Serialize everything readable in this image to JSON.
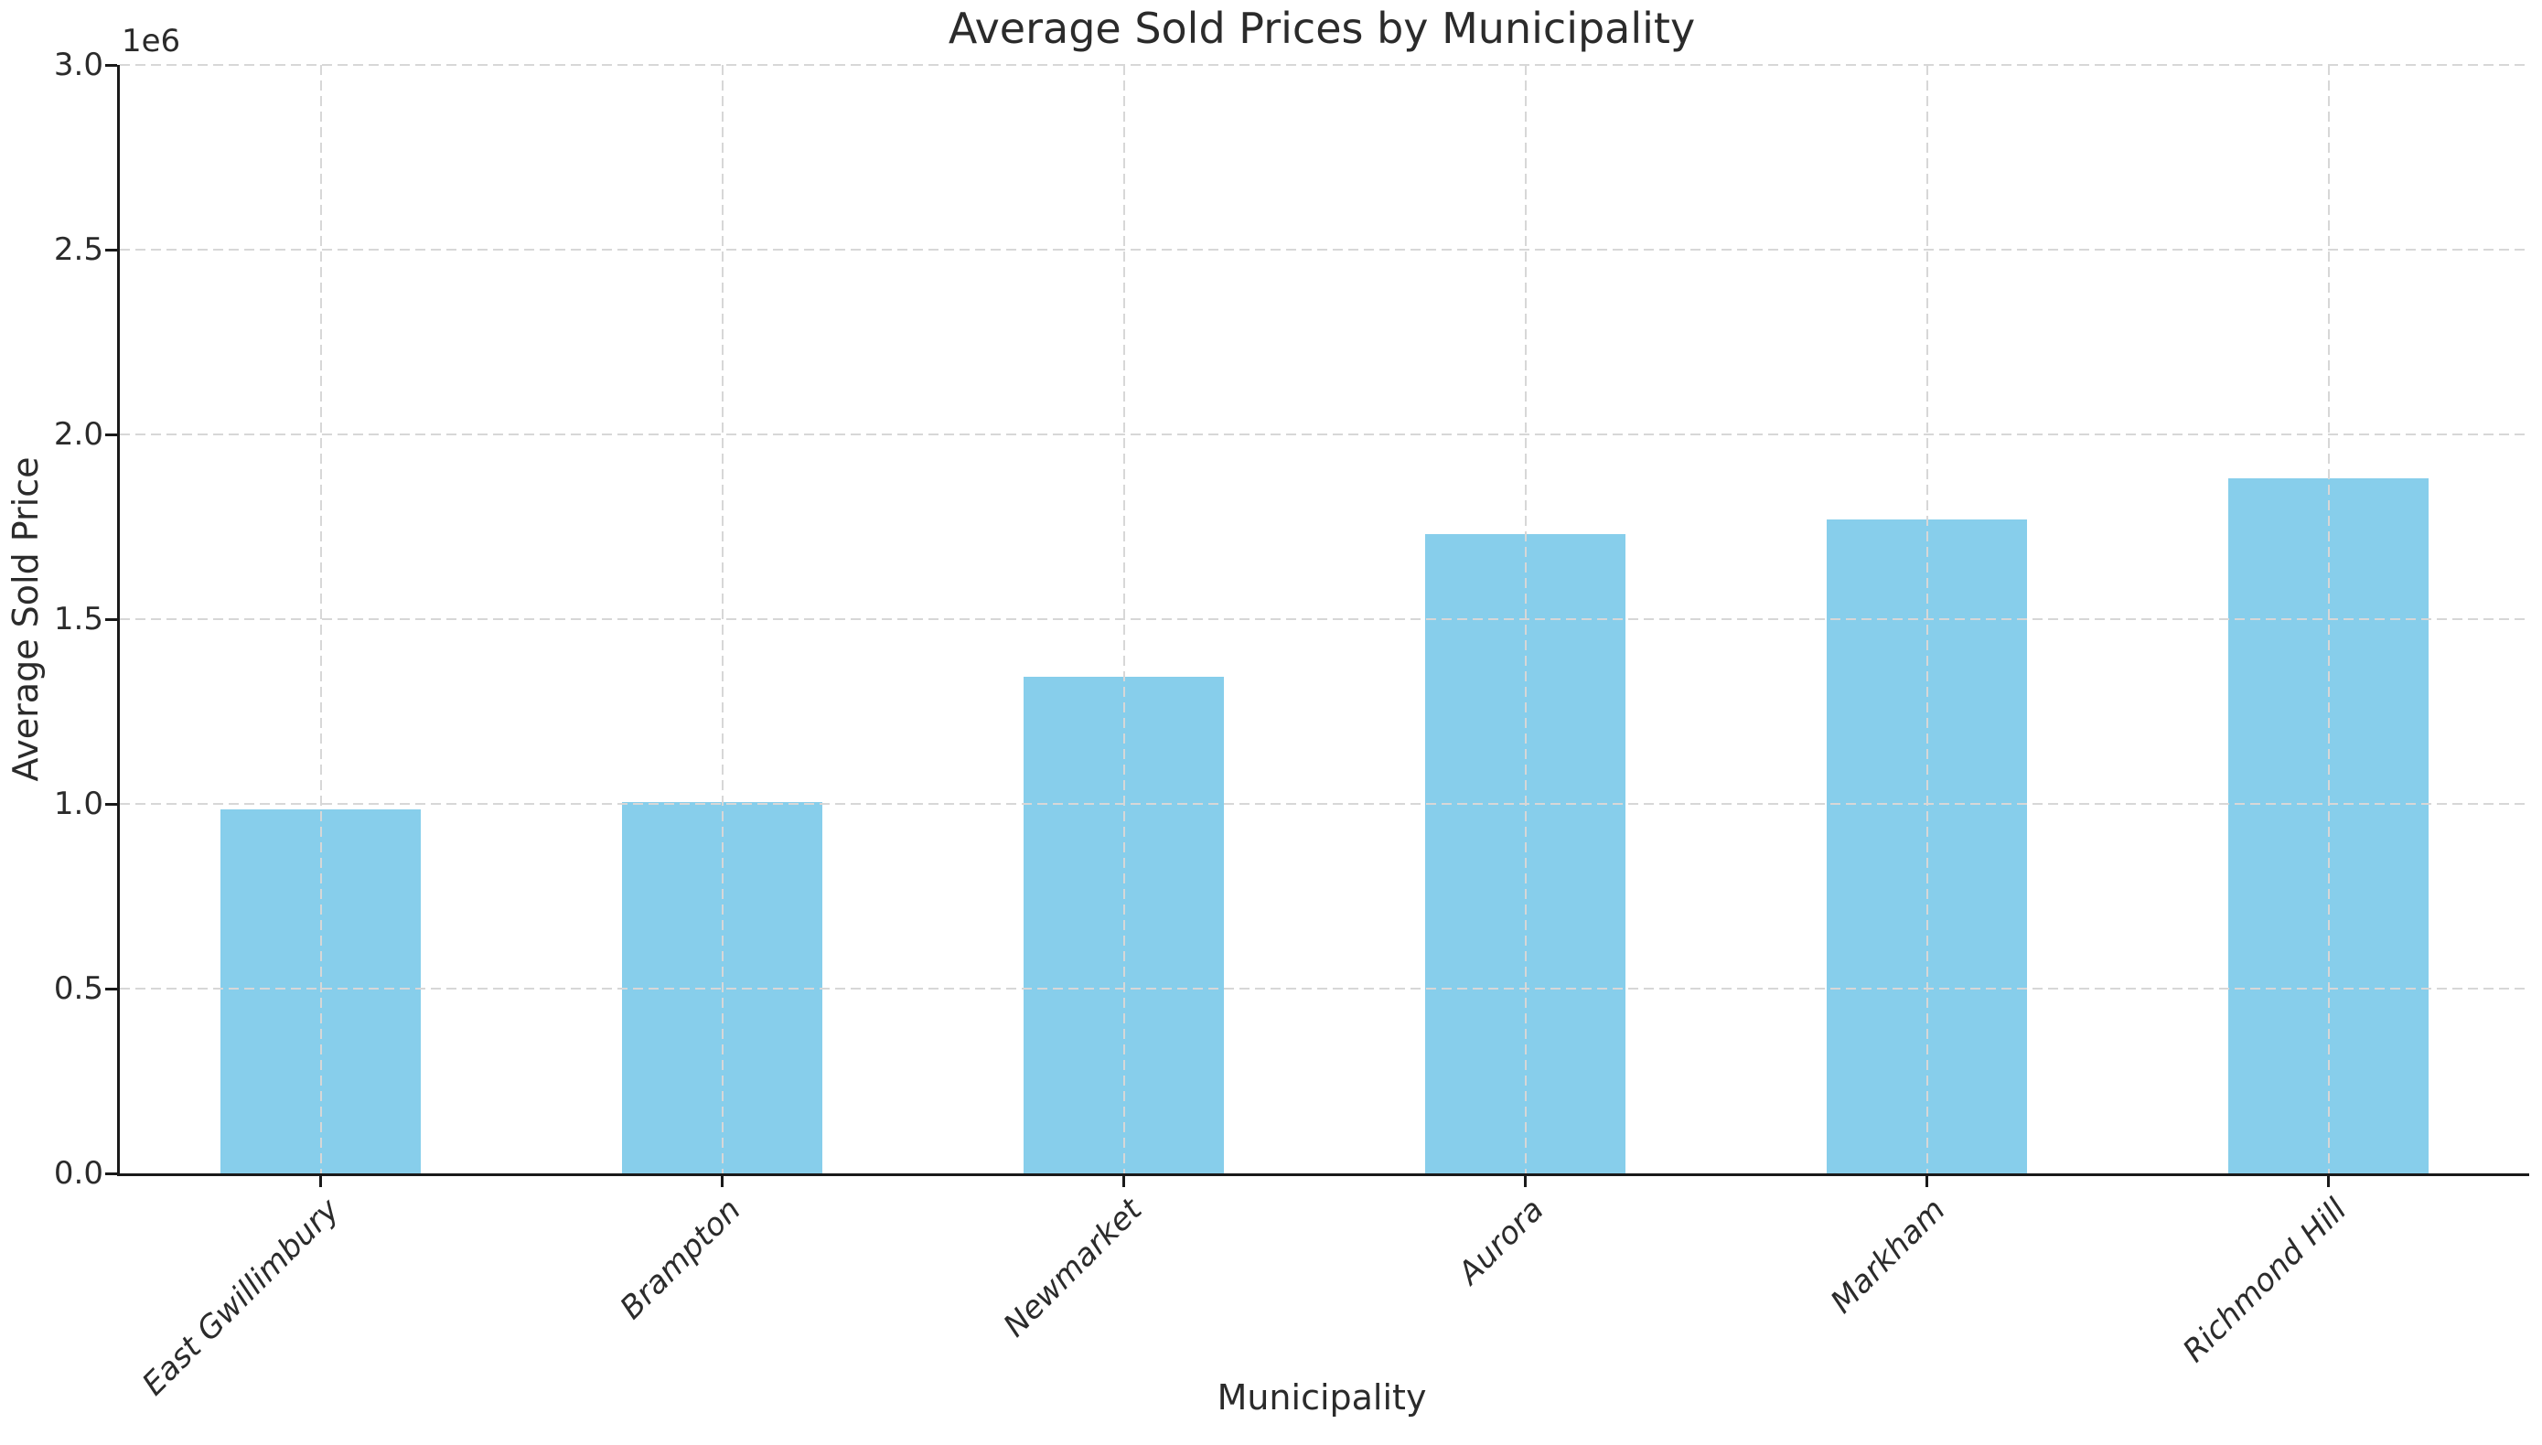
{
  "chart_data": {
    "type": "bar",
    "title": "Average Sold Prices by Municipality",
    "xlabel": "Municipality",
    "ylabel": "Average Sold Price",
    "categories": [
      "East Gwillimbury",
      "Brampton",
      "Newmarket",
      "Aurora",
      "Markham",
      "Richmond Hill"
    ],
    "values": [
      985000,
      1005000,
      1345000,
      1730000,
      1770000,
      1880000
    ],
    "ylim": [
      0,
      3000000
    ],
    "ytick_values": [
      0,
      500000,
      1000000,
      1500000,
      2000000,
      2500000,
      3000000
    ],
    "ytick_labels": [
      "0.0",
      "0.5",
      "1.0",
      "1.5",
      "2.0",
      "2.5",
      "3.0"
    ],
    "offset_label": "1e6",
    "bar_color": "#87CEEB",
    "bar_width_fraction": 0.5,
    "grid": {
      "on": true,
      "style": "dashed",
      "color": "#d7d7d7",
      "above_bars": true
    },
    "legend": "none",
    "xtick_rotation_deg": 45,
    "xtick_style": "italic"
  }
}
